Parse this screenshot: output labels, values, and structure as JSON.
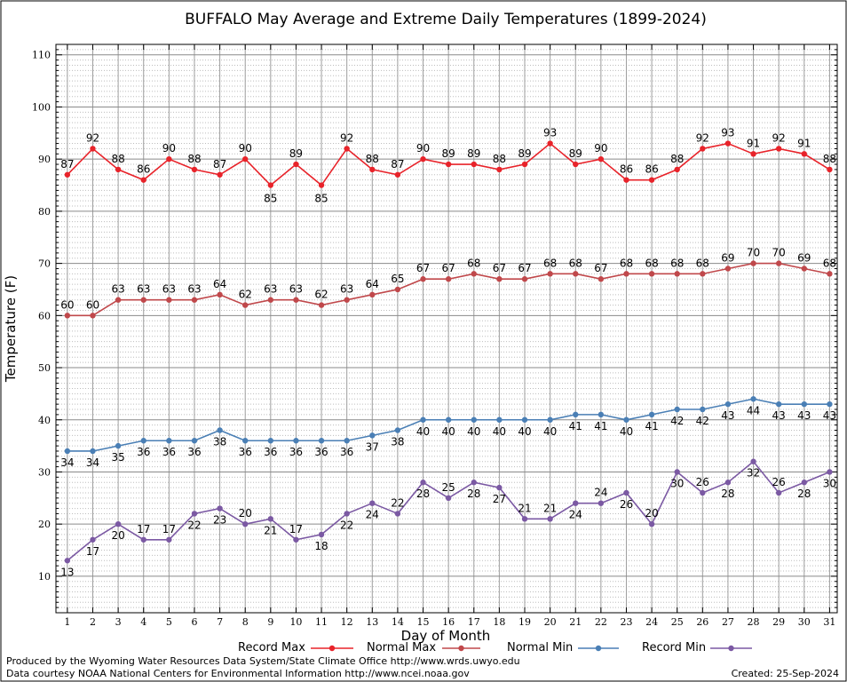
{
  "chart_data": {
    "type": "line",
    "title": "BUFFALO May Average and Extreme Daily Temperatures (1899-2024)",
    "xlabel": "Day of Month",
    "ylabel": "Temperature (F)",
    "x": [
      1,
      2,
      3,
      4,
      5,
      6,
      7,
      8,
      9,
      10,
      11,
      12,
      13,
      14,
      15,
      16,
      17,
      18,
      19,
      20,
      21,
      22,
      23,
      24,
      25,
      26,
      27,
      28,
      29,
      30,
      31
    ],
    "xlim": [
      0.55,
      31.3
    ],
    "ylim": [
      3,
      112
    ],
    "yticks": [
      10,
      20,
      30,
      40,
      50,
      60,
      70,
      80,
      90,
      100,
      110
    ],
    "grid": true,
    "legend_position": "bottom",
    "series": [
      {
        "name": "Record Max",
        "color": "#e8232a",
        "values": [
          87,
          92,
          88,
          86,
          90,
          88,
          87,
          90,
          85,
          89,
          85,
          92,
          88,
          87,
          90,
          89,
          89,
          88,
          89,
          93,
          89,
          90,
          86,
          86,
          88,
          92,
          93,
          91,
          92,
          91,
          88
        ]
      },
      {
        "name": "Normal Max",
        "color": "#c0484b",
        "values": [
          60,
          60,
          63,
          63,
          63,
          63,
          64,
          62,
          63,
          63,
          62,
          63,
          64,
          65,
          67,
          67,
          68,
          67,
          67,
          68,
          68,
          67,
          68,
          68,
          68,
          68,
          69,
          70,
          70,
          69,
          68
        ]
      },
      {
        "name": "Normal Min",
        "color": "#4a7fb5",
        "values": [
          34,
          34,
          35,
          36,
          36,
          36,
          38,
          36,
          36,
          36,
          36,
          36,
          37,
          38,
          40,
          40,
          40,
          40,
          40,
          40,
          41,
          41,
          40,
          41,
          42,
          42,
          43,
          44,
          43,
          43,
          43
        ]
      },
      {
        "name": "Record Min",
        "color": "#7b59a3",
        "values": [
          13,
          17,
          20,
          17,
          17,
          22,
          23,
          20,
          21,
          17,
          18,
          22,
          24,
          22,
          28,
          25,
          28,
          27,
          21,
          21,
          24,
          24,
          26,
          20,
          30,
          26,
          28,
          32,
          26,
          28,
          30
        ]
      }
    ]
  },
  "footer": {
    "produced_by": "Produced by the Wyoming Water Resources Data System/State Climate Office http://www.wrds.uwyo.edu",
    "data_courtesy": "Data courtesy NOAA National Centers for Environmental Information http://www.ncei.noaa.gov",
    "created": "Created:  25-Sep-2024"
  }
}
